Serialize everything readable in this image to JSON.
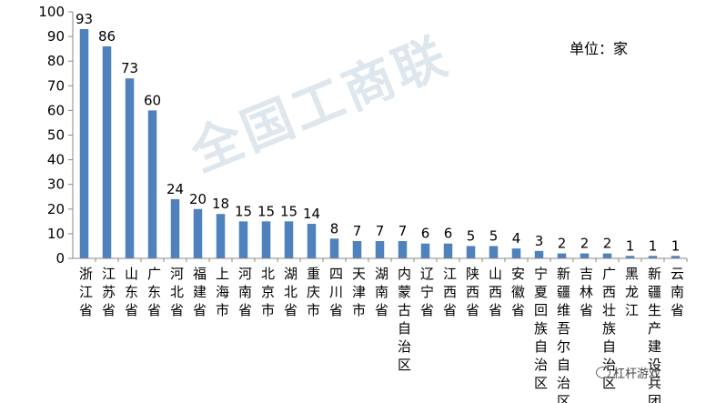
{
  "unit_label": "单位：家",
  "watermark": "全国工商联",
  "brand_text": "杠杆游戏",
  "chart_data": {
    "type": "bar",
    "title": "",
    "xlabel": "",
    "ylabel": "",
    "ylim": [
      0,
      100
    ],
    "yticks": [
      0,
      10,
      20,
      30,
      40,
      50,
      60,
      70,
      80,
      90,
      100
    ],
    "grid": false,
    "bar_color": "#4f81bd",
    "categories": [
      "浙江省",
      "江苏省",
      "山东省",
      "广东省",
      "河北省",
      "福建省",
      "上海市",
      "河南省",
      "北京市",
      "湖北省",
      "重庆市",
      "四川省",
      "天津市",
      "湖南省",
      "内蒙古自治区",
      "辽宁省",
      "江西省",
      "陕西省",
      "山西省",
      "安徽省",
      "宁夏回族自治区",
      "新疆维吾尔自治区",
      "吉林省",
      "广西壮族自治区",
      "黑龙江",
      "新疆生产建设兵团",
      "云南省"
    ],
    "values": [
      93,
      86,
      73,
      60,
      24,
      20,
      18,
      15,
      15,
      15,
      14,
      8,
      7,
      7,
      7,
      6,
      6,
      5,
      5,
      4,
      3,
      2,
      2,
      2,
      1,
      1,
      1
    ]
  }
}
